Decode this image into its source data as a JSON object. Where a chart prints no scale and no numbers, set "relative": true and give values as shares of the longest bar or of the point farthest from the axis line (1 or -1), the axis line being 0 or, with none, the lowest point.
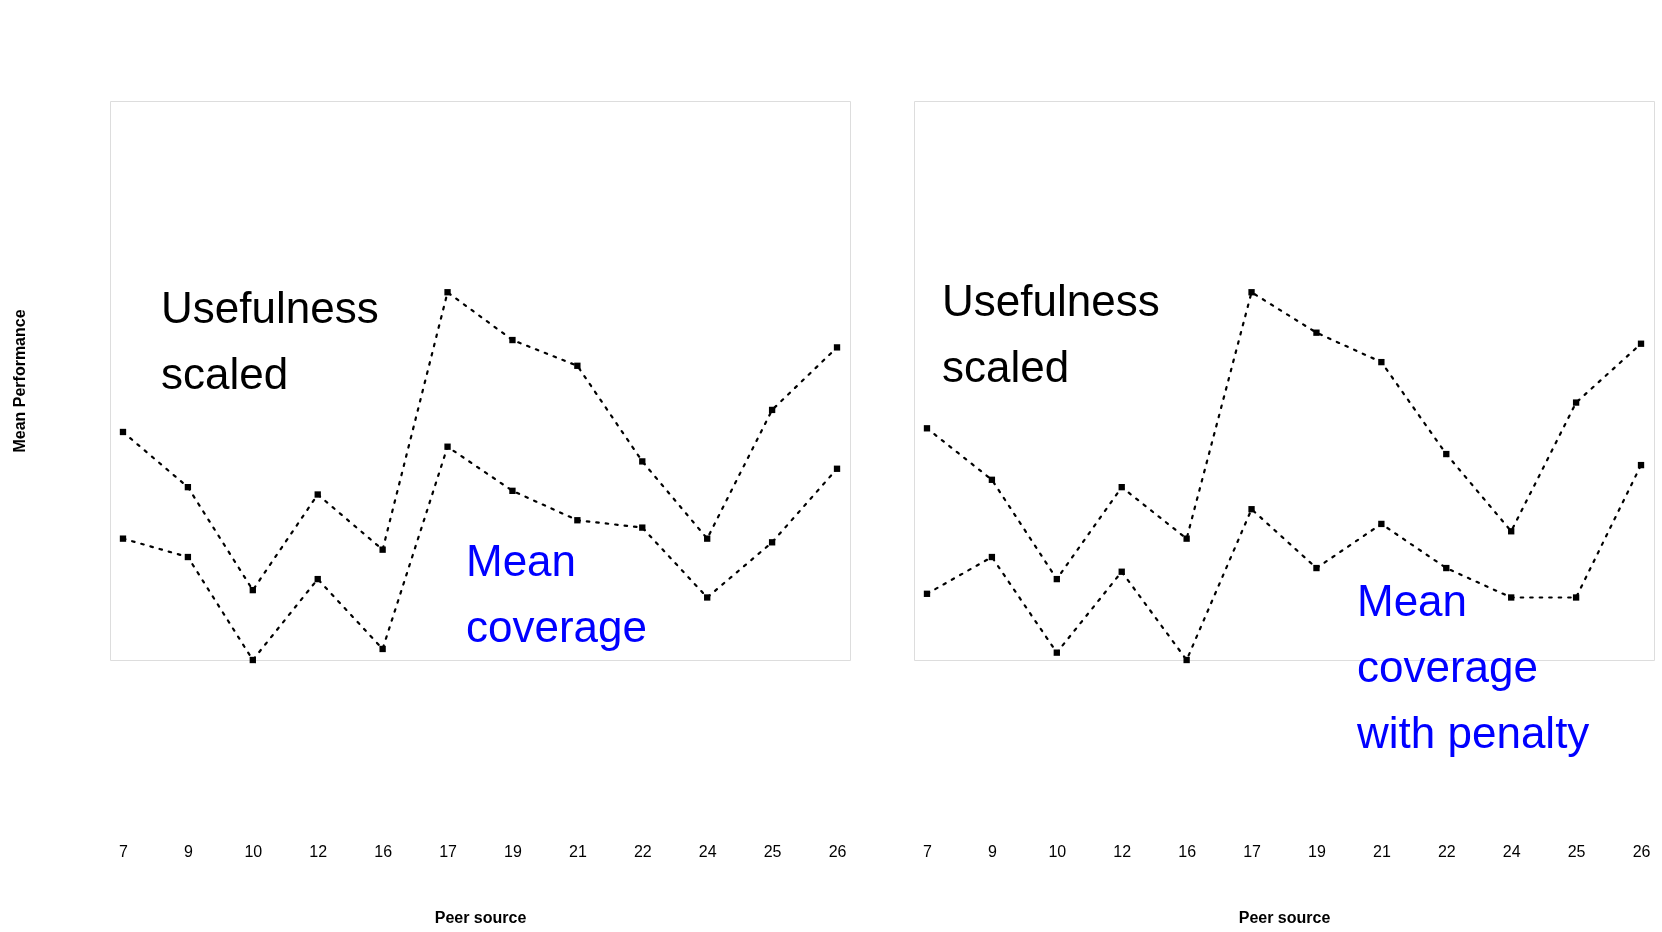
{
  "chart_data": [
    {
      "type": "line",
      "xlabel": "Peer source",
      "ylabel": "Mean Performance",
      "relative": true,
      "line_style": "dotted",
      "marker": "square",
      "categories": [
        "7",
        "9",
        "10",
        "12",
        "16",
        "17",
        "19",
        "21",
        "22",
        "24",
        "25",
        "26"
      ],
      "series": [
        {
          "name": "Usefulness scaled",
          "color": "#000000",
          "values": [
            0.62,
            0.47,
            0.19,
            0.45,
            0.3,
            1,
            0.87,
            0.8,
            0.54,
            0.33,
            0.68,
            0.85
          ]
        },
        {
          "name": "Mean coverage",
          "color": "#000000",
          "values": [
            0.33,
            0.28,
            0,
            0.22,
            0.03,
            0.58,
            0.46,
            0.38,
            0.36,
            0.17,
            0.32,
            0.52
          ]
        }
      ]
    },
    {
      "type": "line",
      "xlabel": "Peer source",
      "relative": true,
      "line_style": "dotted",
      "marker": "square",
      "categories": [
        "7",
        "9",
        "10",
        "12",
        "16",
        "17",
        "19",
        "21",
        "22",
        "24",
        "25",
        "26"
      ],
      "series": [
        {
          "name": "Usefulness scaled",
          "color": "#000000",
          "values": [
            0.63,
            0.49,
            0.22,
            0.47,
            0.33,
            1,
            0.89,
            0.81,
            0.56,
            0.35,
            0.7,
            0.86
          ]
        },
        {
          "name": "Mean coverage with penalty",
          "color": "#000000",
          "values": [
            0.18,
            0.28,
            0.02,
            0.24,
            0,
            0.41,
            0.25,
            0.37,
            0.25,
            0.17,
            0.17,
            0.53
          ]
        }
      ]
    }
  ]
}
